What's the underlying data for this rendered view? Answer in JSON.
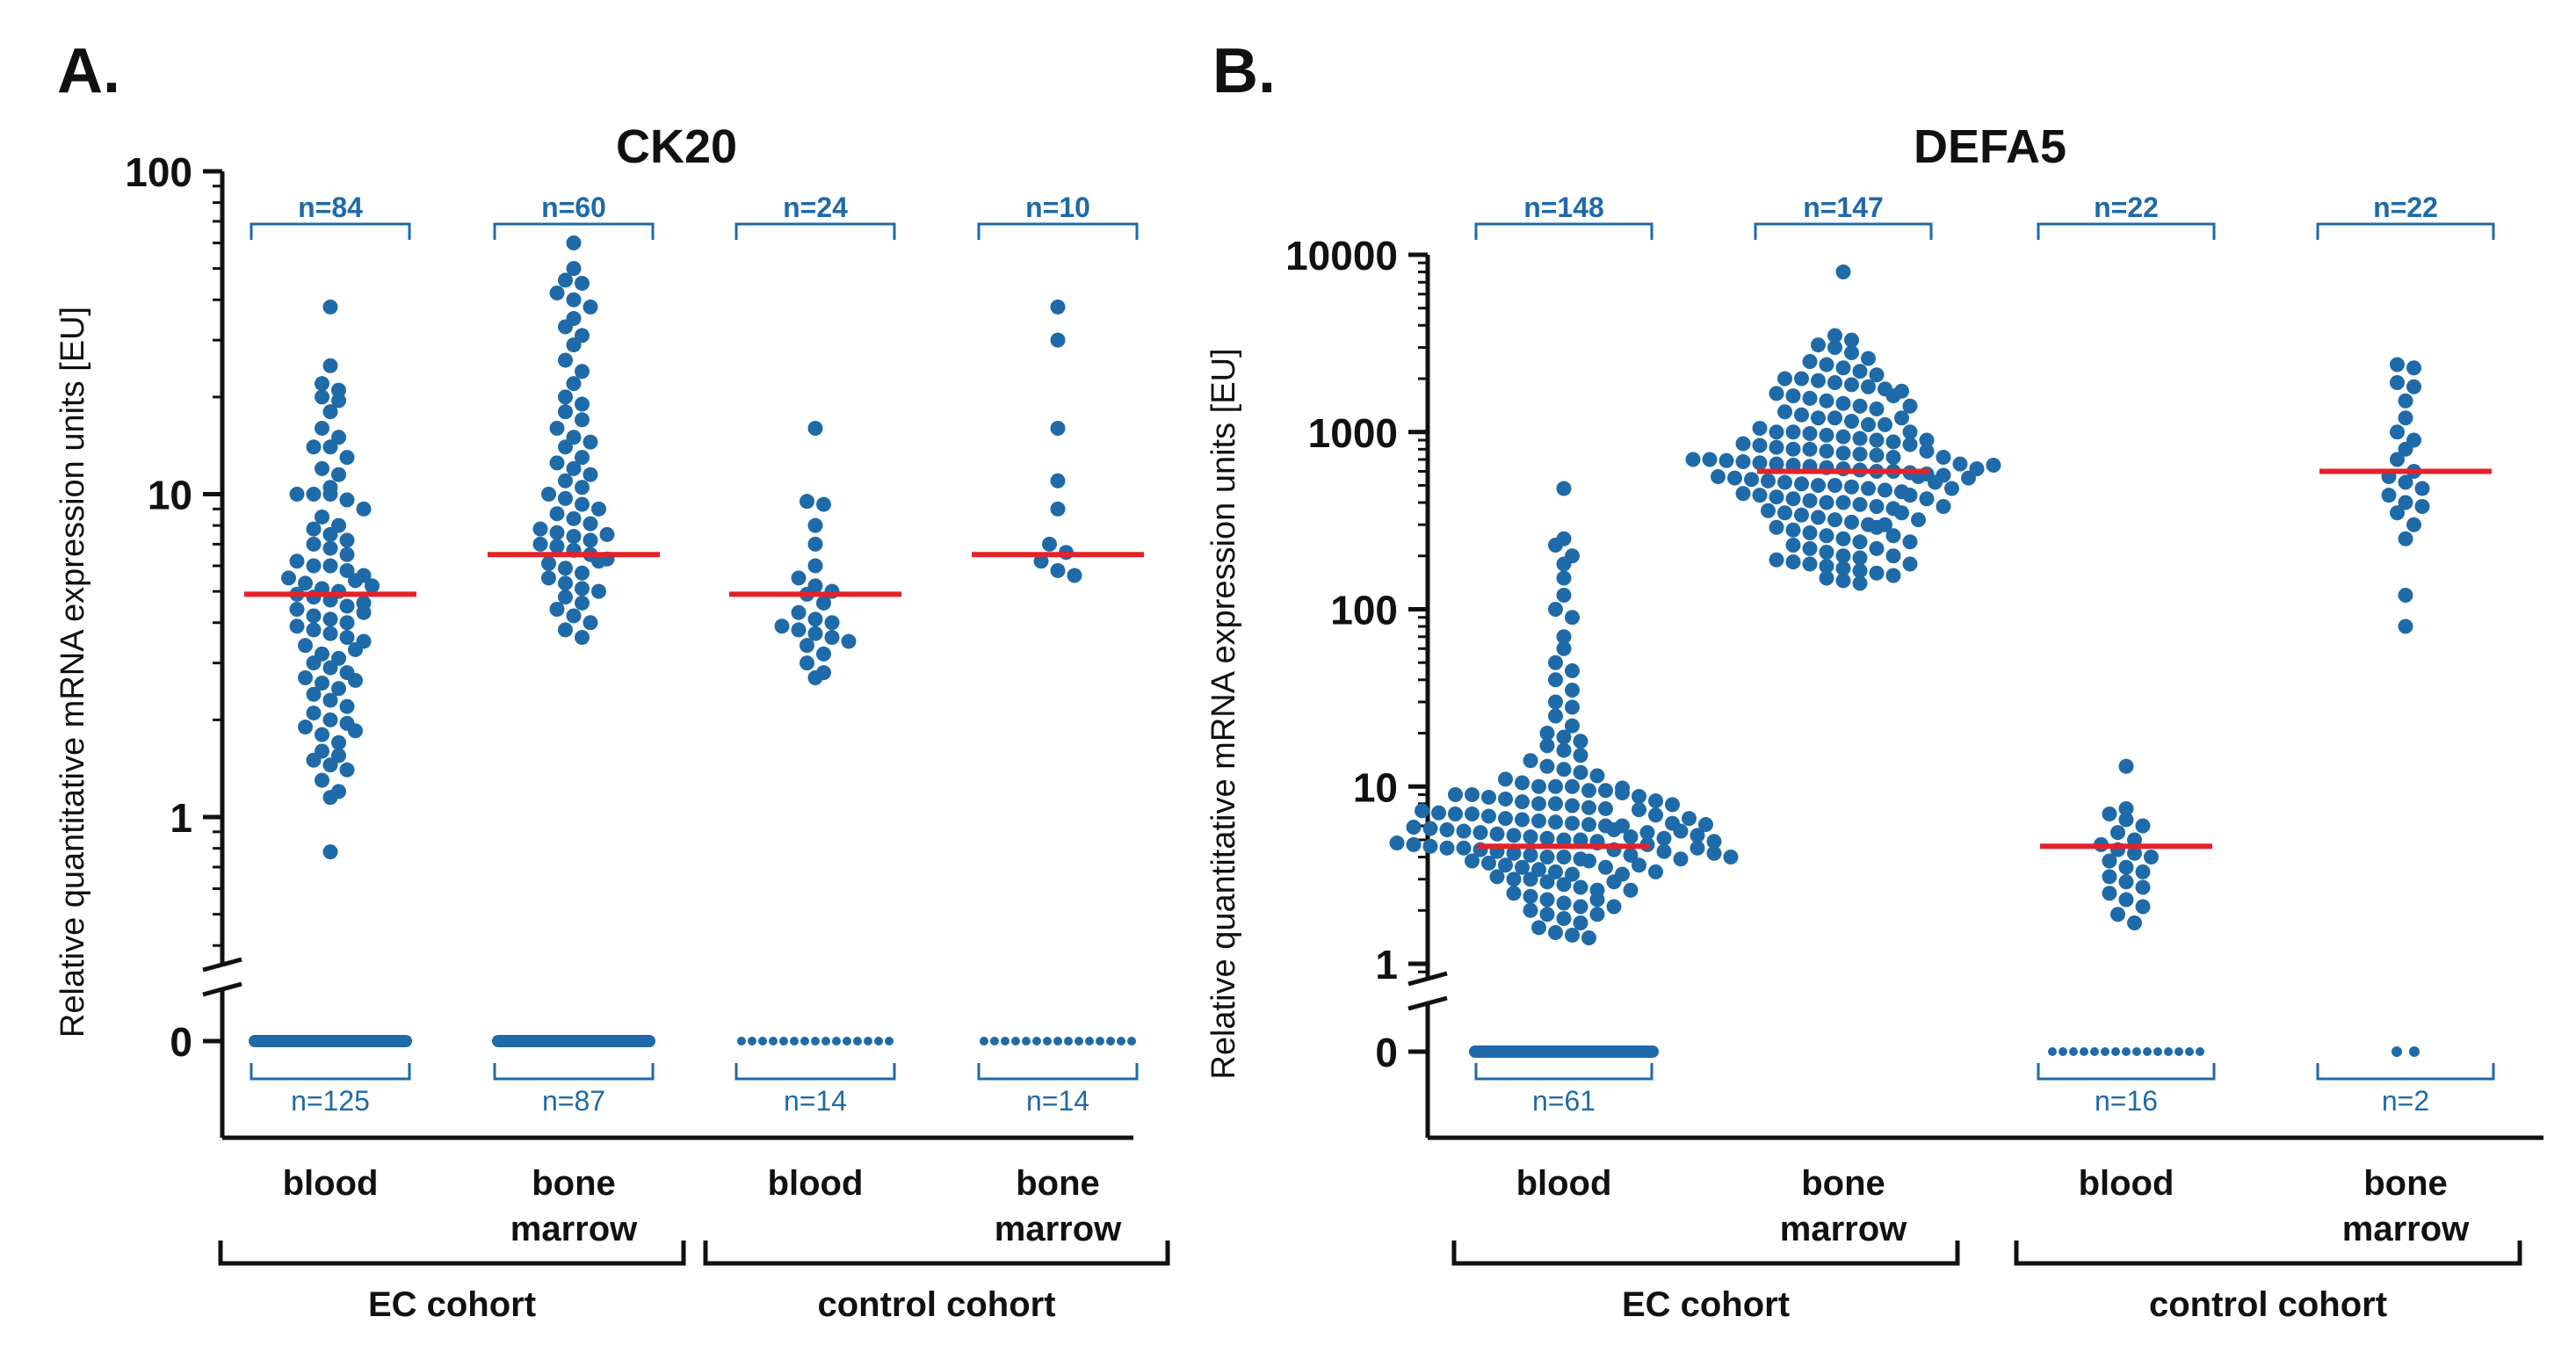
{
  "colors": {
    "dot": "#1f6aa8",
    "median": "#e4222a",
    "axis": "#111111",
    "bracket": "#1f6aa8"
  },
  "chart_data": [
    {
      "type": "scatter",
      "panel_label": "A.",
      "title": "CK20",
      "ylabel": "Relative quantitative mRNA expression units [EU]",
      "yscale": "log",
      "ylim": [
        0.3,
        100
      ],
      "yticks": [
        "1",
        "10",
        "100"
      ],
      "zero_tick": "0",
      "categories": [
        "blood",
        "bone marrow",
        "blood",
        "bone marrow"
      ],
      "groups": [
        {
          "label": "EC cohort",
          "categories": [
            0,
            1
          ]
        },
        {
          "label": "control cohort",
          "categories": [
            2,
            3
          ]
        }
      ],
      "series": [
        {
          "name": "blood",
          "cohort": "EC cohort",
          "n_positive": "n=84",
          "n_zero": "n=125",
          "median": 4.9,
          "values": [
            38,
            25,
            22,
            21,
            20,
            19.5,
            18,
            16,
            15,
            14,
            14,
            13,
            12,
            11.5,
            10.5,
            10,
            10,
            10,
            9.6,
            9,
            8.5,
            8,
            7.8,
            7.5,
            7.2,
            7,
            6.8,
            6.5,
            6.2,
            6,
            6,
            5.8,
            5.6,
            5.5,
            5.3,
            5.1,
            5,
            4.9,
            4.8,
            4.7,
            4.5,
            4.4,
            4.2,
            4.1,
            4,
            3.9,
            3.8,
            3.7,
            3.6,
            3.5,
            3.4,
            3.2,
            3.1,
            3,
            2.9,
            2.8,
            2.7,
            2.6,
            2.5,
            2.4,
            2.3,
            2.2,
            2.1,
            2,
            1.95,
            1.9,
            1.8,
            1.7,
            1.6,
            1.5,
            1.45,
            1.4,
            1.3,
            1.2,
            1.15,
            0.78,
            5.4,
            5.2,
            4.6,
            4.3,
            3.3,
            2.65,
            1.85,
            1.55
          ]
        },
        {
          "name": "bone marrow",
          "cohort": "EC cohort",
          "n_positive": "n=60",
          "n_zero": "n=87",
          "median": 6.5,
          "values": [
            60,
            50,
            46,
            45,
            42,
            40,
            38,
            35,
            33,
            31,
            29,
            26,
            24,
            22,
            20,
            19,
            18,
            17,
            16,
            15,
            14.5,
            14,
            13,
            12.5,
            12,
            11.5,
            11,
            10.5,
            10,
            9.7,
            9.3,
            9,
            8.7,
            8.4,
            8.1,
            7.8,
            7.6,
            7.4,
            7.2,
            7,
            6.9,
            6.7,
            6.5,
            6.3,
            6.1,
            5.9,
            5.7,
            5.5,
            5.3,
            5.1,
            5,
            4.8,
            4.6,
            4.4,
            4.2,
            4,
            3.8,
            3.6,
            7.5,
            6.2
          ]
        },
        {
          "name": "blood",
          "cohort": "control cohort",
          "n_positive": "n=24",
          "n_zero": "n=14",
          "median": 4.9,
          "values": [
            16,
            9.5,
            9.3,
            8,
            7,
            6,
            5.5,
            5.2,
            5,
            4.9,
            4.6,
            4.3,
            4.1,
            4,
            3.9,
            3.8,
            3.7,
            3.6,
            3.5,
            3.4,
            3.2,
            3,
            2.8,
            2.7
          ]
        },
        {
          "name": "bone marrow",
          "cohort": "control cohort",
          "n_positive": "n=10",
          "n_zero": "n=14",
          "median": 6.5,
          "values": [
            38,
            30,
            16,
            11,
            9,
            7,
            6.6,
            6.2,
            5.8,
            5.6
          ]
        }
      ]
    },
    {
      "type": "scatter",
      "panel_label": "B.",
      "title": "DEFA5",
      "ylabel": "Relative quantitative mRNA expression units [EU]",
      "yscale": "log",
      "ylim": [
        0.3,
        10000
      ],
      "yticks": [
        "1",
        "10",
        "100",
        "1000",
        "10000"
      ],
      "zero_tick": "0",
      "categories": [
        "blood",
        "bone marrow",
        "blood",
        "bone marrow"
      ],
      "groups": [
        {
          "label": "EC cohort",
          "categories": [
            0,
            1
          ]
        },
        {
          "label": "control cohort",
          "categories": [
            2,
            3
          ]
        }
      ],
      "series": [
        {
          "name": "blood",
          "cohort": "EC cohort",
          "n_positive": "n=148",
          "n_zero": "n=61",
          "median": 4.6,
          "values": [
            480,
            250,
            230,
            200,
            180,
            150,
            120,
            100,
            90,
            70,
            50,
            45,
            40,
            35,
            30,
            28,
            25,
            22,
            20,
            19,
            18,
            17,
            16,
            15,
            14,
            13,
            12.5,
            12,
            11.5,
            11,
            10.5,
            10,
            10,
            10,
            9.5,
            9.5,
            9,
            9,
            8.7,
            8.5,
            8.2,
            8,
            8,
            7.8,
            7.6,
            7.5,
            7.3,
            7.1,
            7,
            7,
            6.8,
            6.6,
            6.5,
            6.4,
            6.3,
            6.2,
            6.1,
            6,
            6,
            5.9,
            5.8,
            5.7,
            5.6,
            5.5,
            5.4,
            5.3,
            5.2,
            5.1,
            5,
            5,
            4.9,
            4.8,
            4.7,
            4.6,
            4.5,
            4.5,
            4.4,
            4.3,
            4.2,
            4.1,
            4,
            4,
            3.9,
            3.8,
            3.7,
            3.6,
            3.5,
            3.4,
            3.3,
            3.2,
            3.1,
            3,
            3,
            2.9,
            2.8,
            2.7,
            2.6,
            2.5,
            2.4,
            2.3,
            2.2,
            2.1,
            2,
            1.9,
            1.8,
            1.7,
            1.6,
            1.5,
            1.45,
            1.4,
            9.8,
            9.2,
            8.8,
            8.3,
            7.9,
            7.4,
            6.9,
            6.2,
            5.7,
            5.2,
            4.8,
            4.4,
            4.1,
            3.8,
            3.5,
            3.2,
            2.9,
            2.6,
            2.3,
            2.1,
            1.9,
            5.5,
            5.1,
            4.7,
            4.3,
            3.9,
            3.6,
            3.3,
            6.6,
            6.1,
            5.6,
            5.3,
            4.9,
            4.5,
            4.2,
            4,
            60
          ]
        },
        {
          "name": "bone marrow",
          "cohort": "EC cohort",
          "n_positive": "n=147",
          "n_zero": "",
          "median": 600,
          "values": [
            8000,
            3500,
            3300,
            3100,
            3000,
            2800,
            2600,
            2500,
            2400,
            2300,
            2200,
            2100,
            2000,
            2000,
            1950,
            1900,
            1850,
            1800,
            1750,
            1700,
            1650,
            1600,
            1550,
            1500,
            1450,
            1400,
            1350,
            1300,
            1250,
            1200,
            1200,
            1150,
            1100,
            1100,
            1050,
            1000,
            1000,
            980,
            960,
            940,
            920,
            900,
            880,
            860,
            840,
            820,
            800,
            800,
            780,
            760,
            750,
            740,
            720,
            700,
            700,
            690,
            680,
            670,
            660,
            650,
            640,
            630,
            620,
            610,
            600,
            600,
            590,
            580,
            570,
            560,
            550,
            540,
            530,
            520,
            510,
            500,
            500,
            490,
            480,
            470,
            460,
            450,
            440,
            430,
            420,
            410,
            400,
            400,
            390,
            380,
            370,
            360,
            350,
            340,
            330,
            320,
            310,
            300,
            300,
            290,
            280,
            270,
            260,
            250,
            240,
            230,
            220,
            210,
            200,
            195,
            190,
            185,
            180,
            175,
            170,
            165,
            160,
            155,
            150,
            145,
            140,
            1600,
            1400,
            1200,
            1000,
            900,
            850,
            780,
            720,
            660,
            620,
            560,
            520,
            480,
            440,
            420,
            380,
            350,
            320,
            290,
            260,
            240,
            220,
            200,
            180,
            650,
            550
          ]
        },
        {
          "name": "blood",
          "cohort": "control cohort",
          "n_positive": "n=22",
          "n_zero": "n=16",
          "median": 4.6,
          "values": [
            13,
            7.5,
            7,
            6.5,
            6,
            5.5,
            5,
            4.7,
            4.4,
            4.2,
            4,
            3.8,
            3.5,
            3.3,
            3.1,
            2.9,
            2.7,
            2.5,
            2.3,
            2.1,
            1.9,
            1.7
          ]
        },
        {
          "name": "bone marrow",
          "cohort": "control cohort",
          "n_positive": "n=22",
          "n_zero": "n=2",
          "median": 600,
          "values": [
            2400,
            2300,
            1900,
            1800,
            1500,
            1200,
            1000,
            900,
            800,
            700,
            600,
            560,
            520,
            480,
            440,
            400,
            380,
            350,
            300,
            250,
            120,
            80
          ]
        }
      ]
    }
  ]
}
